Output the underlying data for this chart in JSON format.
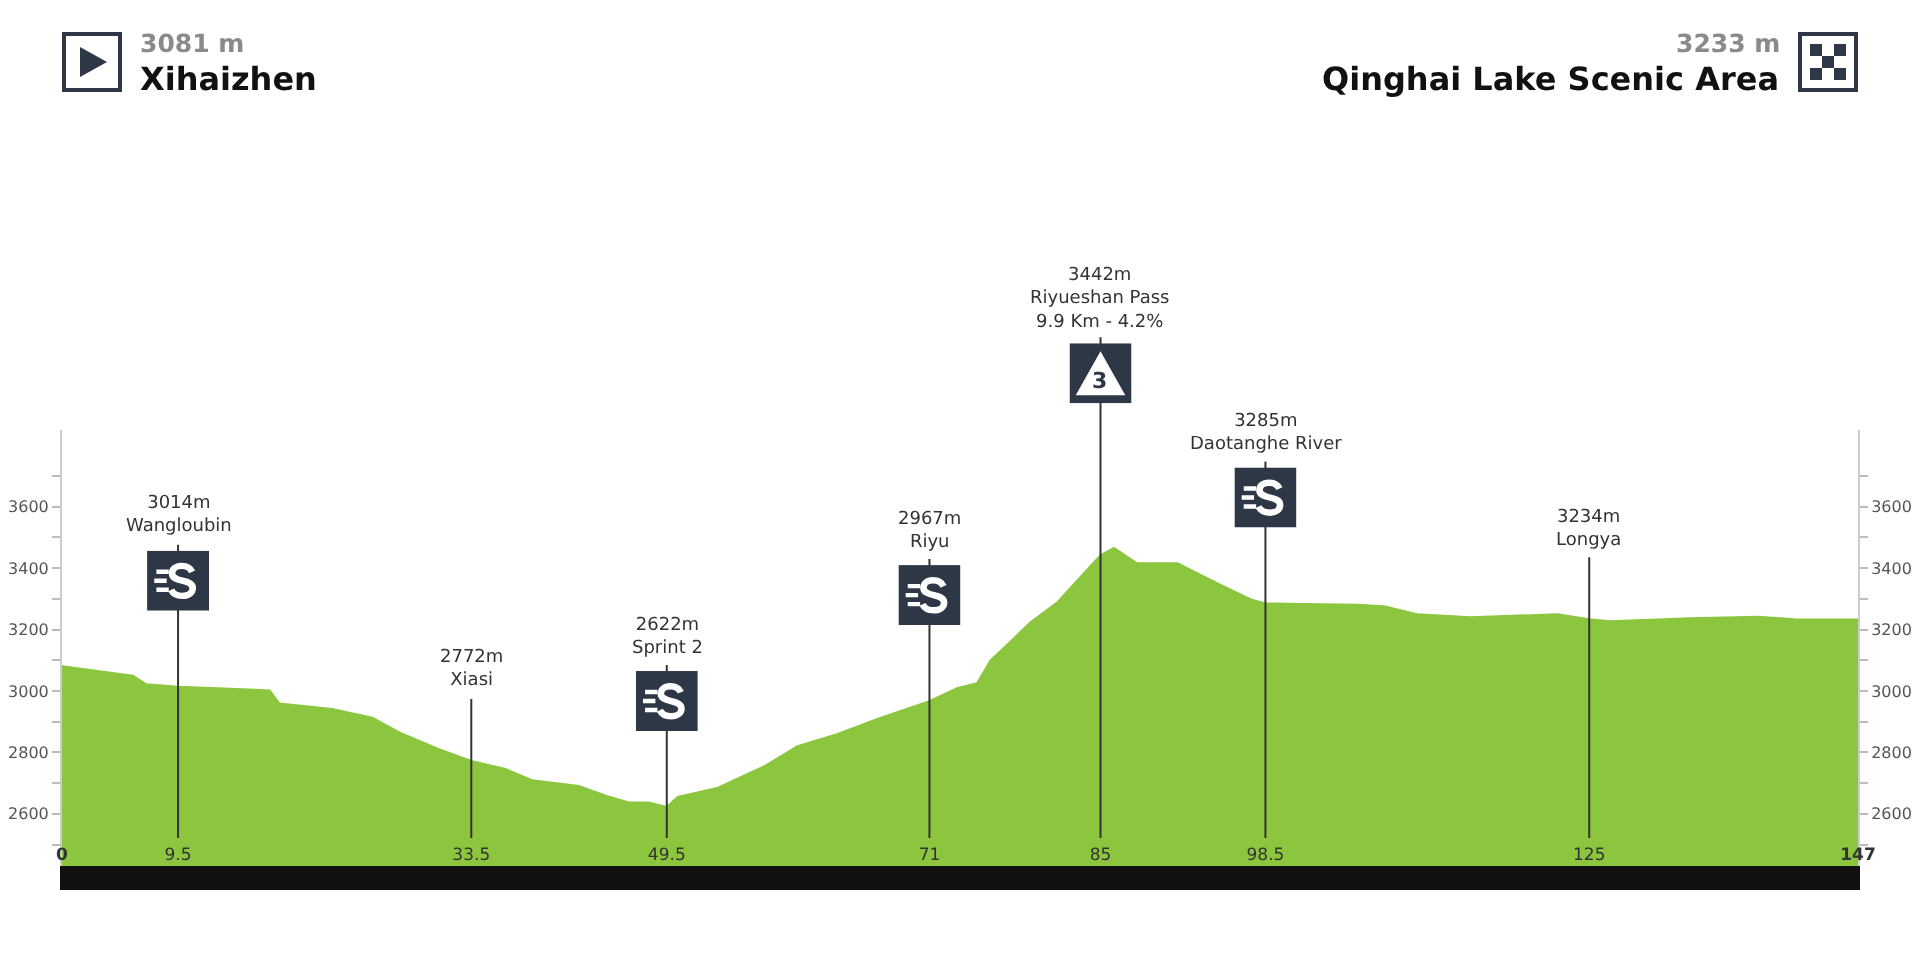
{
  "chart_data": {
    "type": "area",
    "x": [
      0,
      5.8,
      6.9,
      9.5,
      17,
      17.8,
      22.1,
      25.4,
      27.6,
      30.8,
      33.5,
      36.3,
      38.5,
      42.3,
      44.5,
      46.4,
      48,
      49.5,
      50.4,
      53.7,
      57.5,
      60.2,
      63.5,
      66.8,
      71,
      73.3,
      74.9,
      76,
      77.6,
      79.3,
      81.5,
      83.1,
      85,
      86.1,
      88,
      91.3,
      94.5,
      97.3,
      98.5,
      106,
      108.2,
      110.9,
      115.3,
      122.4,
      125,
      126.7,
      133.3,
      138.8,
      142,
      147
    ],
    "series": [
      {
        "color": "#8cc63f",
        "values": [
          3081,
          3050,
          3022,
          3014,
          3002,
          2959,
          2941,
          2913,
          2865,
          2811,
          2772,
          2746,
          2709,
          2691,
          2659,
          2637,
          2637,
          2622,
          2655,
          2685,
          2755,
          2820,
          2860,
          2910,
          2967,
          3010,
          3025,
          3100,
          3160,
          3225,
          3290,
          3360,
          3442,
          3466,
          3416,
          3416,
          3352,
          3298,
          3285,
          3281,
          3276,
          3250,
          3240,
          3250,
          3234,
          3227,
          3237,
          3242,
          3233,
          3233
        ]
      }
    ],
    "xlim": [
      0,
      147
    ],
    "xticks": [
      0,
      9.5,
      33.5,
      49.5,
      71,
      85,
      98.5,
      125,
      147
    ],
    "ylim": [
      2430,
      3850
    ],
    "yticks": [
      {
        "value": 2500,
        "label": null
      },
      2600,
      {
        "value": 2700,
        "label": null
      },
      2800,
      {
        "value": 2900,
        "label": null
      },
      3000,
      {
        "value": 3100,
        "label": null
      },
      3200,
      {
        "value": 3300,
        "label": null
      },
      3400,
      {
        "value": 3500,
        "label": null
      },
      3600,
      {
        "value": 3700,
        "label": null
      }
    ],
    "y2lim": [
      2430,
      3850
    ],
    "y2ticks": [
      {
        "value": 2500,
        "label": null
      },
      2600,
      {
        "value": 2700,
        "label": null
      },
      2800,
      {
        "value": 2900,
        "label": null
      },
      3000,
      {
        "value": 3100,
        "label": null
      },
      3200,
      {
        "value": 3300,
        "label": null
      },
      3400,
      {
        "value": 3500,
        "label": null
      },
      3600,
      {
        "value": 3700,
        "label": null
      }
    ],
    "ref_lines": [
      {
        "axis": "x",
        "value": 9.5,
        "label": "3014m\nWangloubin",
        "color": "#333333"
      },
      {
        "axis": "x",
        "value": 33.5,
        "label": "2772m\nXiasi",
        "color": "#333333"
      },
      {
        "axis": "x",
        "value": 49.5,
        "label": "2622m\nSprint 2",
        "color": "#333333"
      },
      {
        "axis": "x",
        "value": 71,
        "label": "2967m\nRiyu",
        "color": "#333333"
      },
      {
        "axis": "x",
        "value": 85,
        "label": "3442m\nRiyueshan Pass\n9.9 Km - 4.2%",
        "color": "#333333"
      },
      {
        "axis": "x",
        "value": 98.5,
        "label": "3285m\nDaotanghe River",
        "color": "#333333"
      },
      {
        "axis": "x",
        "value": 125,
        "label": "3234m\nLongya",
        "color": "#333333"
      }
    ],
    "annotations": [
      "3081 m",
      "Xihaizhen",
      "3233 m",
      "Qinghai Lake Scenic Area",
      "3"
    ]
  }
}
